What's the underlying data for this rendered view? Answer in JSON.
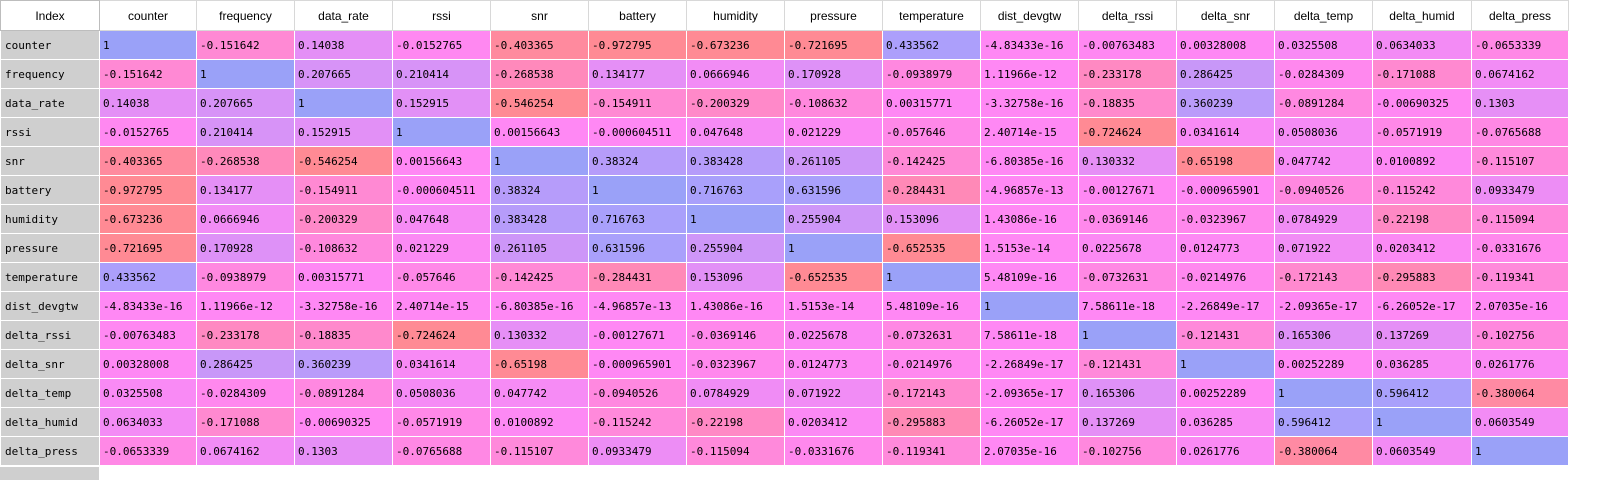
{
  "index_header": "Index",
  "columns": [
    "counter",
    "frequency",
    "data_rate",
    "rssi",
    "snr",
    "battery",
    "humidity",
    "pressure",
    "temperature",
    "dist_devgtw",
    "delta_rssi",
    "delta_snr",
    "delta_temp",
    "delta_humid",
    "delta_press"
  ],
  "rows": [
    {
      "label": "counter",
      "values": [
        "1",
        "-0.151642",
        "0.14038",
        "-0.0152765",
        "-0.403365",
        "-0.972795",
        "-0.673236",
        "-0.721695",
        "0.433562",
        "-4.83433e-16",
        "-0.00763483",
        "0.00328008",
        "0.0325508",
        "0.0634033",
        "-0.0653339"
      ],
      "nums": [
        1,
        -0.151642,
        0.14038,
        -0.0152765,
        -0.403365,
        -0.972795,
        -0.673236,
        -0.721695,
        0.433562,
        -4.83433e-16,
        -0.00763483,
        0.00328008,
        0.0325508,
        0.0634033,
        -0.0653339
      ]
    },
    {
      "label": "frequency",
      "values": [
        "-0.151642",
        "1",
        "0.207665",
        "0.210414",
        "-0.268538",
        "0.134177",
        "0.0666946",
        "0.170928",
        "-0.0938979",
        "1.11966e-12",
        "-0.233178",
        "0.286425",
        "-0.0284309",
        "-0.171088",
        "0.0674162"
      ],
      "nums": [
        -0.151642,
        1,
        0.207665,
        0.210414,
        -0.268538,
        0.134177,
        0.0666946,
        0.170928,
        -0.0938979,
        1.11966e-12,
        -0.233178,
        0.286425,
        -0.0284309,
        -0.171088,
        0.0674162
      ]
    },
    {
      "label": "data_rate",
      "values": [
        "0.14038",
        "0.207665",
        "1",
        "0.152915",
        "-0.546254",
        "-0.154911",
        "-0.200329",
        "-0.108632",
        "0.00315771",
        "-3.32758e-16",
        "-0.18835",
        "0.360239",
        "-0.0891284",
        "-0.00690325",
        "0.1303"
      ],
      "nums": [
        0.14038,
        0.207665,
        1,
        0.152915,
        -0.546254,
        -0.154911,
        -0.200329,
        -0.108632,
        0.00315771,
        -3.32758e-16,
        -0.18835,
        0.360239,
        -0.0891284,
        -0.00690325,
        0.1303
      ]
    },
    {
      "label": "rssi",
      "values": [
        "-0.0152765",
        "0.210414",
        "0.152915",
        "1",
        "0.00156643",
        "-0.000604511",
        "0.047648",
        "0.021229",
        "-0.057646",
        "2.40714e-15",
        "-0.724624",
        "0.0341614",
        "0.0508036",
        "-0.0571919",
        "-0.0765688"
      ],
      "nums": [
        -0.0152765,
        0.210414,
        0.152915,
        1,
        0.00156643,
        -0.000604511,
        0.047648,
        0.021229,
        -0.057646,
        2.40714e-15,
        -0.724624,
        0.0341614,
        0.0508036,
        -0.0571919,
        -0.0765688
      ]
    },
    {
      "label": "snr",
      "values": [
        "-0.403365",
        "-0.268538",
        "-0.546254",
        "0.00156643",
        "1",
        "0.38324",
        "0.383428",
        "0.261105",
        "-0.142425",
        "-6.80385e-16",
        "0.130332",
        "-0.65198",
        "0.047742",
        "0.0100892",
        "-0.115107"
      ],
      "nums": [
        -0.403365,
        -0.268538,
        -0.546254,
        0.00156643,
        1,
        0.38324,
        0.383428,
        0.261105,
        -0.142425,
        -6.80385e-16,
        0.130332,
        -0.65198,
        0.047742,
        0.0100892,
        -0.115107
      ]
    },
    {
      "label": "battery",
      "values": [
        "-0.972795",
        "0.134177",
        "-0.154911",
        "-0.000604511",
        "0.38324",
        "1",
        "0.716763",
        "0.631596",
        "-0.284431",
        "-4.96857e-13",
        "-0.00127671",
        "-0.000965901",
        "-0.0940526",
        "-0.115242",
        "0.0933479"
      ],
      "nums": [
        -0.972795,
        0.134177,
        -0.154911,
        -0.000604511,
        0.38324,
        1,
        0.716763,
        0.631596,
        -0.284431,
        -4.96857e-13,
        -0.00127671,
        -0.000965901,
        -0.0940526,
        -0.115242,
        0.0933479
      ]
    },
    {
      "label": "humidity",
      "values": [
        "-0.673236",
        "0.0666946",
        "-0.200329",
        "0.047648",
        "0.383428",
        "0.716763",
        "1",
        "0.255904",
        "0.153096",
        "1.43086e-16",
        "-0.0369146",
        "-0.0323967",
        "0.0784929",
        "-0.22198",
        "-0.115094"
      ],
      "nums": [
        -0.673236,
        0.0666946,
        -0.200329,
        0.047648,
        0.383428,
        0.716763,
        1,
        0.255904,
        0.153096,
        1.43086e-16,
        -0.0369146,
        -0.0323967,
        0.0784929,
        -0.22198,
        -0.115094
      ]
    },
    {
      "label": "pressure",
      "values": [
        "-0.721695",
        "0.170928",
        "-0.108632",
        "0.021229",
        "0.261105",
        "0.631596",
        "0.255904",
        "1",
        "-0.652535",
        "1.5153e-14",
        "0.0225678",
        "0.0124773",
        "0.071922",
        "0.0203412",
        "-0.0331676"
      ],
      "nums": [
        -0.721695,
        0.170928,
        -0.108632,
        0.021229,
        0.261105,
        0.631596,
        0.255904,
        1,
        -0.652535,
        1.5153e-14,
        0.0225678,
        0.0124773,
        0.071922,
        0.0203412,
        -0.0331676
      ]
    },
    {
      "label": "temperature",
      "values": [
        "0.433562",
        "-0.0938979",
        "0.00315771",
        "-0.057646",
        "-0.142425",
        "-0.284431",
        "0.153096",
        "-0.652535",
        "1",
        "5.48109e-16",
        "-0.0732631",
        "-0.0214976",
        "-0.172143",
        "-0.295883",
        "-0.119341"
      ],
      "nums": [
        0.433562,
        -0.0938979,
        0.00315771,
        -0.057646,
        -0.142425,
        -0.284431,
        0.153096,
        -0.652535,
        1,
        5.48109e-16,
        -0.0732631,
        -0.0214976,
        -0.172143,
        -0.295883,
        -0.119341
      ]
    },
    {
      "label": "dist_devgtw",
      "values": [
        "-4.83433e-16",
        "1.11966e-12",
        "-3.32758e-16",
        "2.40714e-15",
        "-6.80385e-16",
        "-4.96857e-13",
        "1.43086e-16",
        "1.5153e-14",
        "5.48109e-16",
        "1",
        "7.58611e-18",
        "-2.26849e-17",
        "-2.09365e-17",
        "-6.26052e-17",
        "2.07035e-16"
      ],
      "nums": [
        -4.83433e-16,
        1.11966e-12,
        -3.32758e-16,
        2.40714e-15,
        -6.80385e-16,
        -4.96857e-13,
        1.43086e-16,
        1.5153e-14,
        5.48109e-16,
        1,
        7.58611e-18,
        -2.26849e-17,
        -2.09365e-17,
        -6.26052e-17,
        2.07035e-16
      ]
    },
    {
      "label": "delta_rssi",
      "values": [
        "-0.00763483",
        "-0.233178",
        "-0.18835",
        "-0.724624",
        "0.130332",
        "-0.00127671",
        "-0.0369146",
        "0.0225678",
        "-0.0732631",
        "7.58611e-18",
        "1",
        "-0.121431",
        "0.165306",
        "0.137269",
        "-0.102756"
      ],
      "nums": [
        -0.00763483,
        -0.233178,
        -0.18835,
        -0.724624,
        0.130332,
        -0.00127671,
        -0.0369146,
        0.0225678,
        -0.0732631,
        7.58611e-18,
        1,
        -0.121431,
        0.165306,
        0.137269,
        -0.102756
      ]
    },
    {
      "label": "delta_snr",
      "values": [
        "0.00328008",
        "0.286425",
        "0.360239",
        "0.0341614",
        "-0.65198",
        "-0.000965901",
        "-0.0323967",
        "0.0124773",
        "-0.0214976",
        "-2.26849e-17",
        "-0.121431",
        "1",
        "0.00252289",
        "0.036285",
        "0.0261776"
      ],
      "nums": [
        0.00328008,
        0.286425,
        0.360239,
        0.0341614,
        -0.65198,
        -0.000965901,
        -0.0323967,
        0.0124773,
        -0.0214976,
        -2.26849e-17,
        -0.121431,
        1,
        0.00252289,
        0.036285,
        0.0261776
      ]
    },
    {
      "label": "delta_temp",
      "values": [
        "0.0325508",
        "-0.0284309",
        "-0.0891284",
        "0.0508036",
        "0.047742",
        "-0.0940526",
        "0.0784929",
        "0.071922",
        "-0.172143",
        "-2.09365e-17",
        "0.165306",
        "0.00252289",
        "1",
        "0.596412",
        "-0.380064"
      ],
      "nums": [
        0.0325508,
        -0.0284309,
        -0.0891284,
        0.0508036,
        0.047742,
        -0.0940526,
        0.0784929,
        0.071922,
        -0.172143,
        -2.09365e-17,
        0.165306,
        0.00252289,
        1,
        0.596412,
        -0.380064
      ]
    },
    {
      "label": "delta_humid",
      "values": [
        "0.0634033",
        "-0.171088",
        "-0.00690325",
        "-0.0571919",
        "0.0100892",
        "-0.115242",
        "-0.22198",
        "0.0203412",
        "-0.295883",
        "-6.26052e-17",
        "0.137269",
        "0.036285",
        "0.596412",
        "1",
        "0.0603549"
      ],
      "nums": [
        0.0634033,
        -0.171088,
        -0.00690325,
        -0.0571919,
        0.0100892,
        -0.115242,
        -0.22198,
        0.0203412,
        -0.295883,
        -6.26052e-17,
        0.137269,
        0.036285,
        0.596412,
        1,
        0.0603549
      ]
    },
    {
      "label": "delta_press",
      "values": [
        "-0.0653339",
        "0.0674162",
        "0.1303",
        "-0.0765688",
        "-0.115107",
        "0.0933479",
        "-0.115094",
        "-0.0331676",
        "-0.119341",
        "2.07035e-16",
        "-0.102756",
        "0.0261776",
        "-0.380064",
        "0.0603549",
        "1"
      ],
      "nums": [
        -0.0653339,
        0.0674162,
        0.1303,
        -0.0765688,
        -0.115107,
        0.0933479,
        -0.115094,
        -0.0331676,
        -0.119341,
        2.07035e-16,
        -0.102756,
        0.0261776,
        -0.380064,
        0.0603549,
        1
      ]
    }
  ],
  "colors": {
    "index_bg": "#cfcfcf",
    "diag": "#9aa1f8",
    "neutral": "#ff88f4",
    "negative": "#ff8a94",
    "positive": "#a9a0fb"
  }
}
